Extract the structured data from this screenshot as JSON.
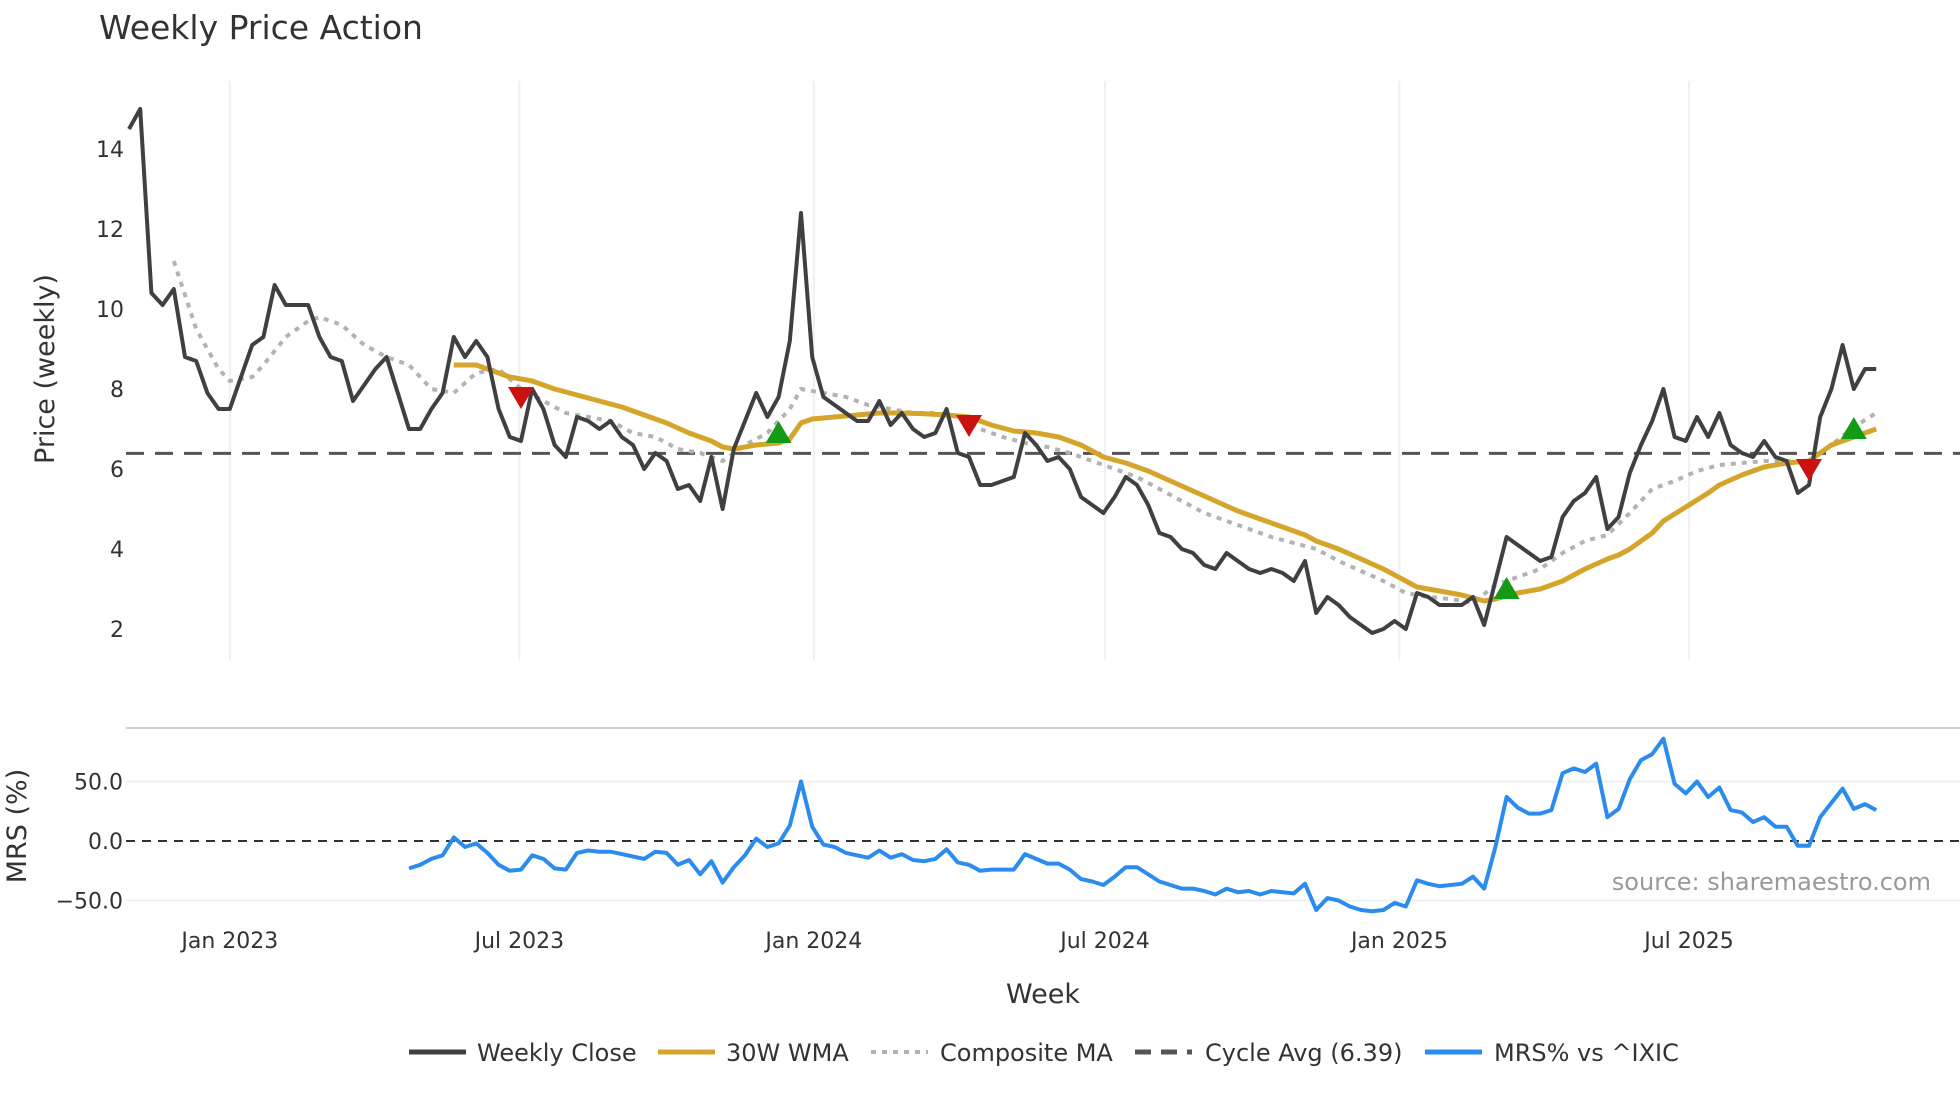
{
  "chart_data": {
    "type": "line",
    "title": "Weekly Price Action",
    "xlabel": "Week",
    "start_date": "2022-10-30",
    "x_unit": "week index (weekly bars from start_date)",
    "xlim_dates": [
      "2022-10-28",
      "2025-12-17"
    ],
    "x_ticks": [
      {
        "date": "2023-01-01",
        "label": "Jan 2023"
      },
      {
        "date": "2023-07-01",
        "label": "Jul 2023"
      },
      {
        "date": "2024-01-01",
        "label": "Jan 2024"
      },
      {
        "date": "2024-07-01",
        "label": "Jul 2024"
      },
      {
        "date": "2025-01-01",
        "label": "Jan 2025"
      },
      {
        "date": "2025-07-01",
        "label": "Jul 2025"
      }
    ],
    "price_panel": {
      "ylabel": "Price (weekly)",
      "ylim": [
        1.2,
        15.9
      ],
      "y_ticks": [
        2,
        4,
        6,
        8,
        10,
        12,
        14
      ],
      "cycle_avg": 6.39,
      "weekly_close": [
        14.5,
        15.0,
        10.4,
        10.1,
        10.5,
        8.8,
        8.7,
        7.9,
        7.5,
        7.5,
        8.3,
        9.1,
        9.3,
        10.6,
        10.1,
        10.1,
        10.1,
        9.3,
        8.8,
        8.7,
        7.7,
        8.1,
        8.5,
        8.8,
        7.9,
        7.0,
        7.0,
        7.5,
        7.9,
        9.3,
        8.8,
        9.2,
        8.8,
        7.5,
        6.8,
        6.7,
        8.0,
        7.5,
        6.6,
        6.3,
        7.3,
        7.2,
        7.0,
        7.2,
        6.8,
        6.6,
        6.0,
        6.4,
        6.2,
        5.5,
        5.6,
        5.2,
        6.3,
        5.0,
        6.5,
        7.2,
        7.9,
        7.3,
        7.8,
        9.2,
        12.4,
        8.8,
        7.8,
        7.6,
        7.4,
        7.2,
        7.2,
        7.7,
        7.1,
        7.4,
        7.0,
        6.8,
        6.9,
        7.5,
        6.4,
        6.3,
        5.6,
        5.6,
        5.7,
        5.8,
        6.9,
        6.6,
        6.2,
        6.3,
        6.0,
        5.3,
        5.1,
        4.9,
        5.3,
        5.8,
        5.6,
        5.1,
        4.4,
        4.3,
        4.0,
        3.9,
        3.6,
        3.5,
        3.9,
        3.7,
        3.5,
        3.4,
        3.5,
        3.4,
        3.2,
        3.7,
        2.4,
        2.8,
        2.6,
        2.3,
        2.1,
        1.9,
        2.0,
        2.2,
        2.0,
        2.9,
        2.8,
        2.6,
        2.6,
        2.6,
        2.8,
        2.1,
        3.2,
        4.3,
        4.1,
        3.9,
        3.7,
        3.8,
        4.8,
        5.2,
        5.4,
        5.8,
        4.5,
        4.8,
        5.9,
        6.6,
        7.2,
        8.0,
        6.8,
        6.7,
        7.3,
        6.8,
        7.4,
        6.6,
        6.4,
        6.3,
        6.7,
        6.3,
        6.2,
        5.4,
        5.6,
        7.3,
        8.0,
        9.1,
        8.0,
        8.5,
        8.5
      ],
      "wma_30w": [
        [
          29,
          8.6
        ],
        [
          31,
          8.6
        ],
        [
          32,
          8.5
        ],
        [
          34,
          8.3
        ],
        [
          36,
          8.2
        ],
        [
          38,
          8.0
        ],
        [
          40,
          7.85
        ],
        [
          42,
          7.7
        ],
        [
          44,
          7.55
        ],
        [
          46,
          7.35
        ],
        [
          48,
          7.15
        ],
        [
          50,
          6.9
        ],
        [
          52,
          6.7
        ],
        [
          53,
          6.55
        ],
        [
          54,
          6.5
        ],
        [
          56,
          6.6
        ],
        [
          58,
          6.65
        ],
        [
          59,
          6.75
        ],
        [
          60,
          7.15
        ],
        [
          61,
          7.25
        ],
        [
          63,
          7.3
        ],
        [
          65,
          7.35
        ],
        [
          67,
          7.4
        ],
        [
          69,
          7.4
        ],
        [
          71,
          7.38
        ],
        [
          73,
          7.35
        ],
        [
          75,
          7.3
        ],
        [
          77,
          7.1
        ],
        [
          79,
          6.95
        ],
        [
          81,
          6.9
        ],
        [
          83,
          6.8
        ],
        [
          85,
          6.6
        ],
        [
          86,
          6.45
        ],
        [
          87,
          6.3
        ],
        [
          89,
          6.15
        ],
        [
          91,
          5.95
        ],
        [
          93,
          5.7
        ],
        [
          95,
          5.45
        ],
        [
          97,
          5.2
        ],
        [
          99,
          4.95
        ],
        [
          101,
          4.75
        ],
        [
          103,
          4.55
        ],
        [
          105,
          4.35
        ],
        [
          106,
          4.2
        ],
        [
          108,
          4.0
        ],
        [
          110,
          3.75
        ],
        [
          112,
          3.5
        ],
        [
          114,
          3.2
        ],
        [
          115,
          3.05
        ],
        [
          117,
          2.95
        ],
        [
          119,
          2.85
        ],
        [
          121,
          2.7
        ],
        [
          122,
          2.75
        ],
        [
          124,
          2.9
        ],
        [
          126,
          3.0
        ],
        [
          128,
          3.2
        ],
        [
          130,
          3.5
        ],
        [
          132,
          3.75
        ],
        [
          133,
          3.85
        ],
        [
          134,
          4.0
        ],
        [
          136,
          4.4
        ],
        [
          137,
          4.7
        ],
        [
          139,
          5.05
        ],
        [
          141,
          5.4
        ],
        [
          142,
          5.6
        ],
        [
          144,
          5.85
        ],
        [
          146,
          6.05
        ],
        [
          148,
          6.15
        ],
        [
          150,
          6.2
        ],
        [
          151,
          6.4
        ],
        [
          152,
          6.6
        ],
        [
          154,
          6.8
        ],
        [
          156,
          7.0
        ]
      ],
      "composite_ma": [
        [
          4,
          11.2
        ],
        [
          6,
          9.5
        ],
        [
          8,
          8.5
        ],
        [
          9,
          8.2
        ],
        [
          11,
          8.3
        ],
        [
          12,
          8.6
        ],
        [
          14,
          9.3
        ],
        [
          16,
          9.7
        ],
        [
          17,
          9.8
        ],
        [
          19,
          9.6
        ],
        [
          21,
          9.1
        ],
        [
          23,
          8.8
        ],
        [
          25,
          8.6
        ],
        [
          27,
          8.0
        ],
        [
          29,
          7.9
        ],
        [
          31,
          8.4
        ],
        [
          33,
          8.5
        ],
        [
          35,
          8.0
        ],
        [
          37,
          7.7
        ],
        [
          39,
          7.4
        ],
        [
          41,
          7.3
        ],
        [
          43,
          7.2
        ],
        [
          45,
          6.9
        ],
        [
          47,
          6.8
        ],
        [
          49,
          6.5
        ],
        [
          51,
          6.4
        ],
        [
          53,
          6.2
        ],
        [
          55,
          6.6
        ],
        [
          57,
          6.9
        ],
        [
          59,
          7.5
        ],
        [
          60,
          8.0
        ],
        [
          62,
          7.9
        ],
        [
          64,
          7.8
        ],
        [
          66,
          7.6
        ],
        [
          68,
          7.5
        ],
        [
          70,
          7.4
        ],
        [
          72,
          7.4
        ],
        [
          74,
          7.3
        ],
        [
          76,
          7.0
        ],
        [
          78,
          6.8
        ],
        [
          80,
          6.65
        ],
        [
          82,
          6.55
        ],
        [
          84,
          6.4
        ],
        [
          86,
          6.2
        ],
        [
          88,
          6.0
        ],
        [
          90,
          5.8
        ],
        [
          92,
          5.5
        ],
        [
          94,
          5.2
        ],
        [
          96,
          4.9
        ],
        [
          98,
          4.7
        ],
        [
          100,
          4.5
        ],
        [
          102,
          4.3
        ],
        [
          104,
          4.15
        ],
        [
          106,
          4.0
        ],
        [
          108,
          3.7
        ],
        [
          110,
          3.45
        ],
        [
          112,
          3.2
        ],
        [
          114,
          2.9
        ],
        [
          116,
          2.8
        ],
        [
          118,
          2.75
        ],
        [
          120,
          2.65
        ],
        [
          122,
          3.1
        ],
        [
          124,
          3.3
        ],
        [
          126,
          3.5
        ],
        [
          128,
          3.9
        ],
        [
          130,
          4.2
        ],
        [
          132,
          4.35
        ],
        [
          134,
          4.9
        ],
        [
          136,
          5.5
        ],
        [
          138,
          5.7
        ],
        [
          140,
          5.95
        ],
        [
          142,
          6.1
        ],
        [
          144,
          6.15
        ],
        [
          146,
          6.2
        ],
        [
          148,
          6.2
        ],
        [
          150,
          6.2
        ],
        [
          152,
          6.6
        ],
        [
          154,
          7.05
        ],
        [
          156,
          7.4
        ]
      ],
      "sell_signals": [
        [
          35,
          7.8
        ],
        [
          75,
          7.1
        ],
        [
          150,
          6.0
        ]
      ],
      "buy_signals": [
        [
          58,
          6.9
        ],
        [
          123,
          3.0
        ],
        [
          154,
          7.0
        ]
      ]
    },
    "mrs_panel": {
      "ylabel": "MRS (%)",
      "ylim": [
        -70,
        95
      ],
      "y_ticks": [
        {
          "v": 50,
          "label": "50.0"
        },
        {
          "v": 0,
          "label": "0.0"
        },
        {
          "v": -50,
          "label": "−50.0"
        }
      ],
      "start_week": 25,
      "values": [
        -23,
        -20,
        -15,
        -12,
        3,
        -5,
        -2,
        -10,
        -20,
        -25,
        -24,
        -12,
        -15,
        -23,
        -24,
        -10,
        -8,
        -9,
        -9,
        -11,
        -13,
        -15,
        -9,
        -10,
        -20,
        -16,
        -28,
        -17,
        -35,
        -22,
        -12,
        2,
        -5,
        -2,
        13,
        50,
        12,
        -3,
        -5,
        -10,
        -12,
        -14,
        -8,
        -14,
        -11,
        -16,
        -17,
        -15,
        -7,
        -18,
        -20,
        -25,
        -24,
        -24,
        -24,
        -11,
        -15,
        -19,
        -19,
        -24,
        -32,
        -34,
        -37,
        -30,
        -22,
        -22,
        -28,
        -34,
        -37,
        -40,
        -40,
        -42,
        -45,
        -40,
        -43,
        -42,
        -45,
        -42,
        -43,
        -44,
        -36,
        -58,
        -48,
        -50,
        -55,
        -58,
        -59,
        -58,
        -52,
        -55,
        -33,
        -36,
        -38,
        -37,
        -36,
        -30,
        -40,
        -5,
        37,
        28,
        23,
        23,
        26,
        57,
        61,
        58,
        65,
        20,
        27,
        52,
        68,
        73,
        86,
        48,
        40,
        50,
        37,
        45,
        26,
        24,
        16,
        20,
        12,
        12,
        -4,
        -4,
        20,
        32,
        44,
        27,
        31,
        26
      ],
      "source": "source: sharemaestro.com"
    },
    "legend": {
      "placement": "bottom-center",
      "items": [
        {
          "label": "Weekly Close",
          "style": "solid",
          "color": "#404040"
        },
        {
          "label": "30W WMA",
          "style": "solid",
          "color": "#d4a52a"
        },
        {
          "label": "Composite MA",
          "style": "dotted",
          "color": "#b3b3b3"
        },
        {
          "label": "Cycle Avg (6.39)",
          "style": "dashed",
          "color": "#555555"
        },
        {
          "label": "MRS% vs ^IXIC",
          "style": "solid",
          "color": "#2b8ced"
        }
      ]
    },
    "colors": {
      "close": "#404040",
      "wma": "#d4a52a",
      "composite": "#b3b3b3",
      "cycle": "#555555",
      "mrs": "#2b8ced",
      "sell": "#cc1111",
      "buy": "#159a15",
      "grid": "#edf0f4"
    }
  }
}
